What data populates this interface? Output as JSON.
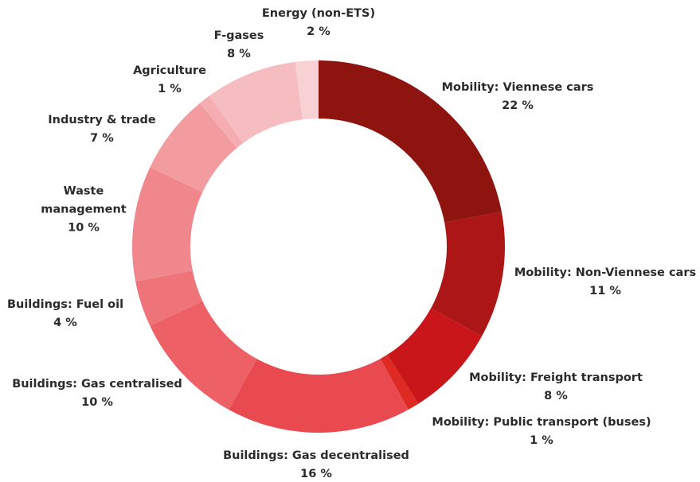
{
  "chart_data": {
    "type": "donut",
    "categories": [
      "Mobility: Viennese cars",
      "Mobility: Non-Viennese cars",
      "Mobility: Freight transport",
      "Mobility: Public transport (buses)",
      "Buildings: Gas decentralised",
      "Buildings: Gas centralised",
      "Buildings: Fuel oil",
      "Waste management",
      "Industry & trade",
      "Agriculture",
      "F-gases",
      "Energy (non-ETS)"
    ],
    "values": [
      22,
      11,
      8,
      1,
      16,
      10,
      4,
      10,
      7,
      1,
      8,
      2
    ],
    "value_labels": [
      "22 %",
      "11 %",
      "8 %",
      "1 %",
      "16 %",
      "10 %",
      "4 %",
      "10 %",
      "7 %",
      "1 %",
      "8 %",
      "2 %"
    ],
    "colors": [
      "#8e150f",
      "#ad1616",
      "#c8161a",
      "#df2a24",
      "#e84a50",
      "#ec6066",
      "#ee7479",
      "#f0878c",
      "#f39ca0",
      "#f5adb1",
      "#f6bdc1",
      "#f8d1d4"
    ]
  }
}
